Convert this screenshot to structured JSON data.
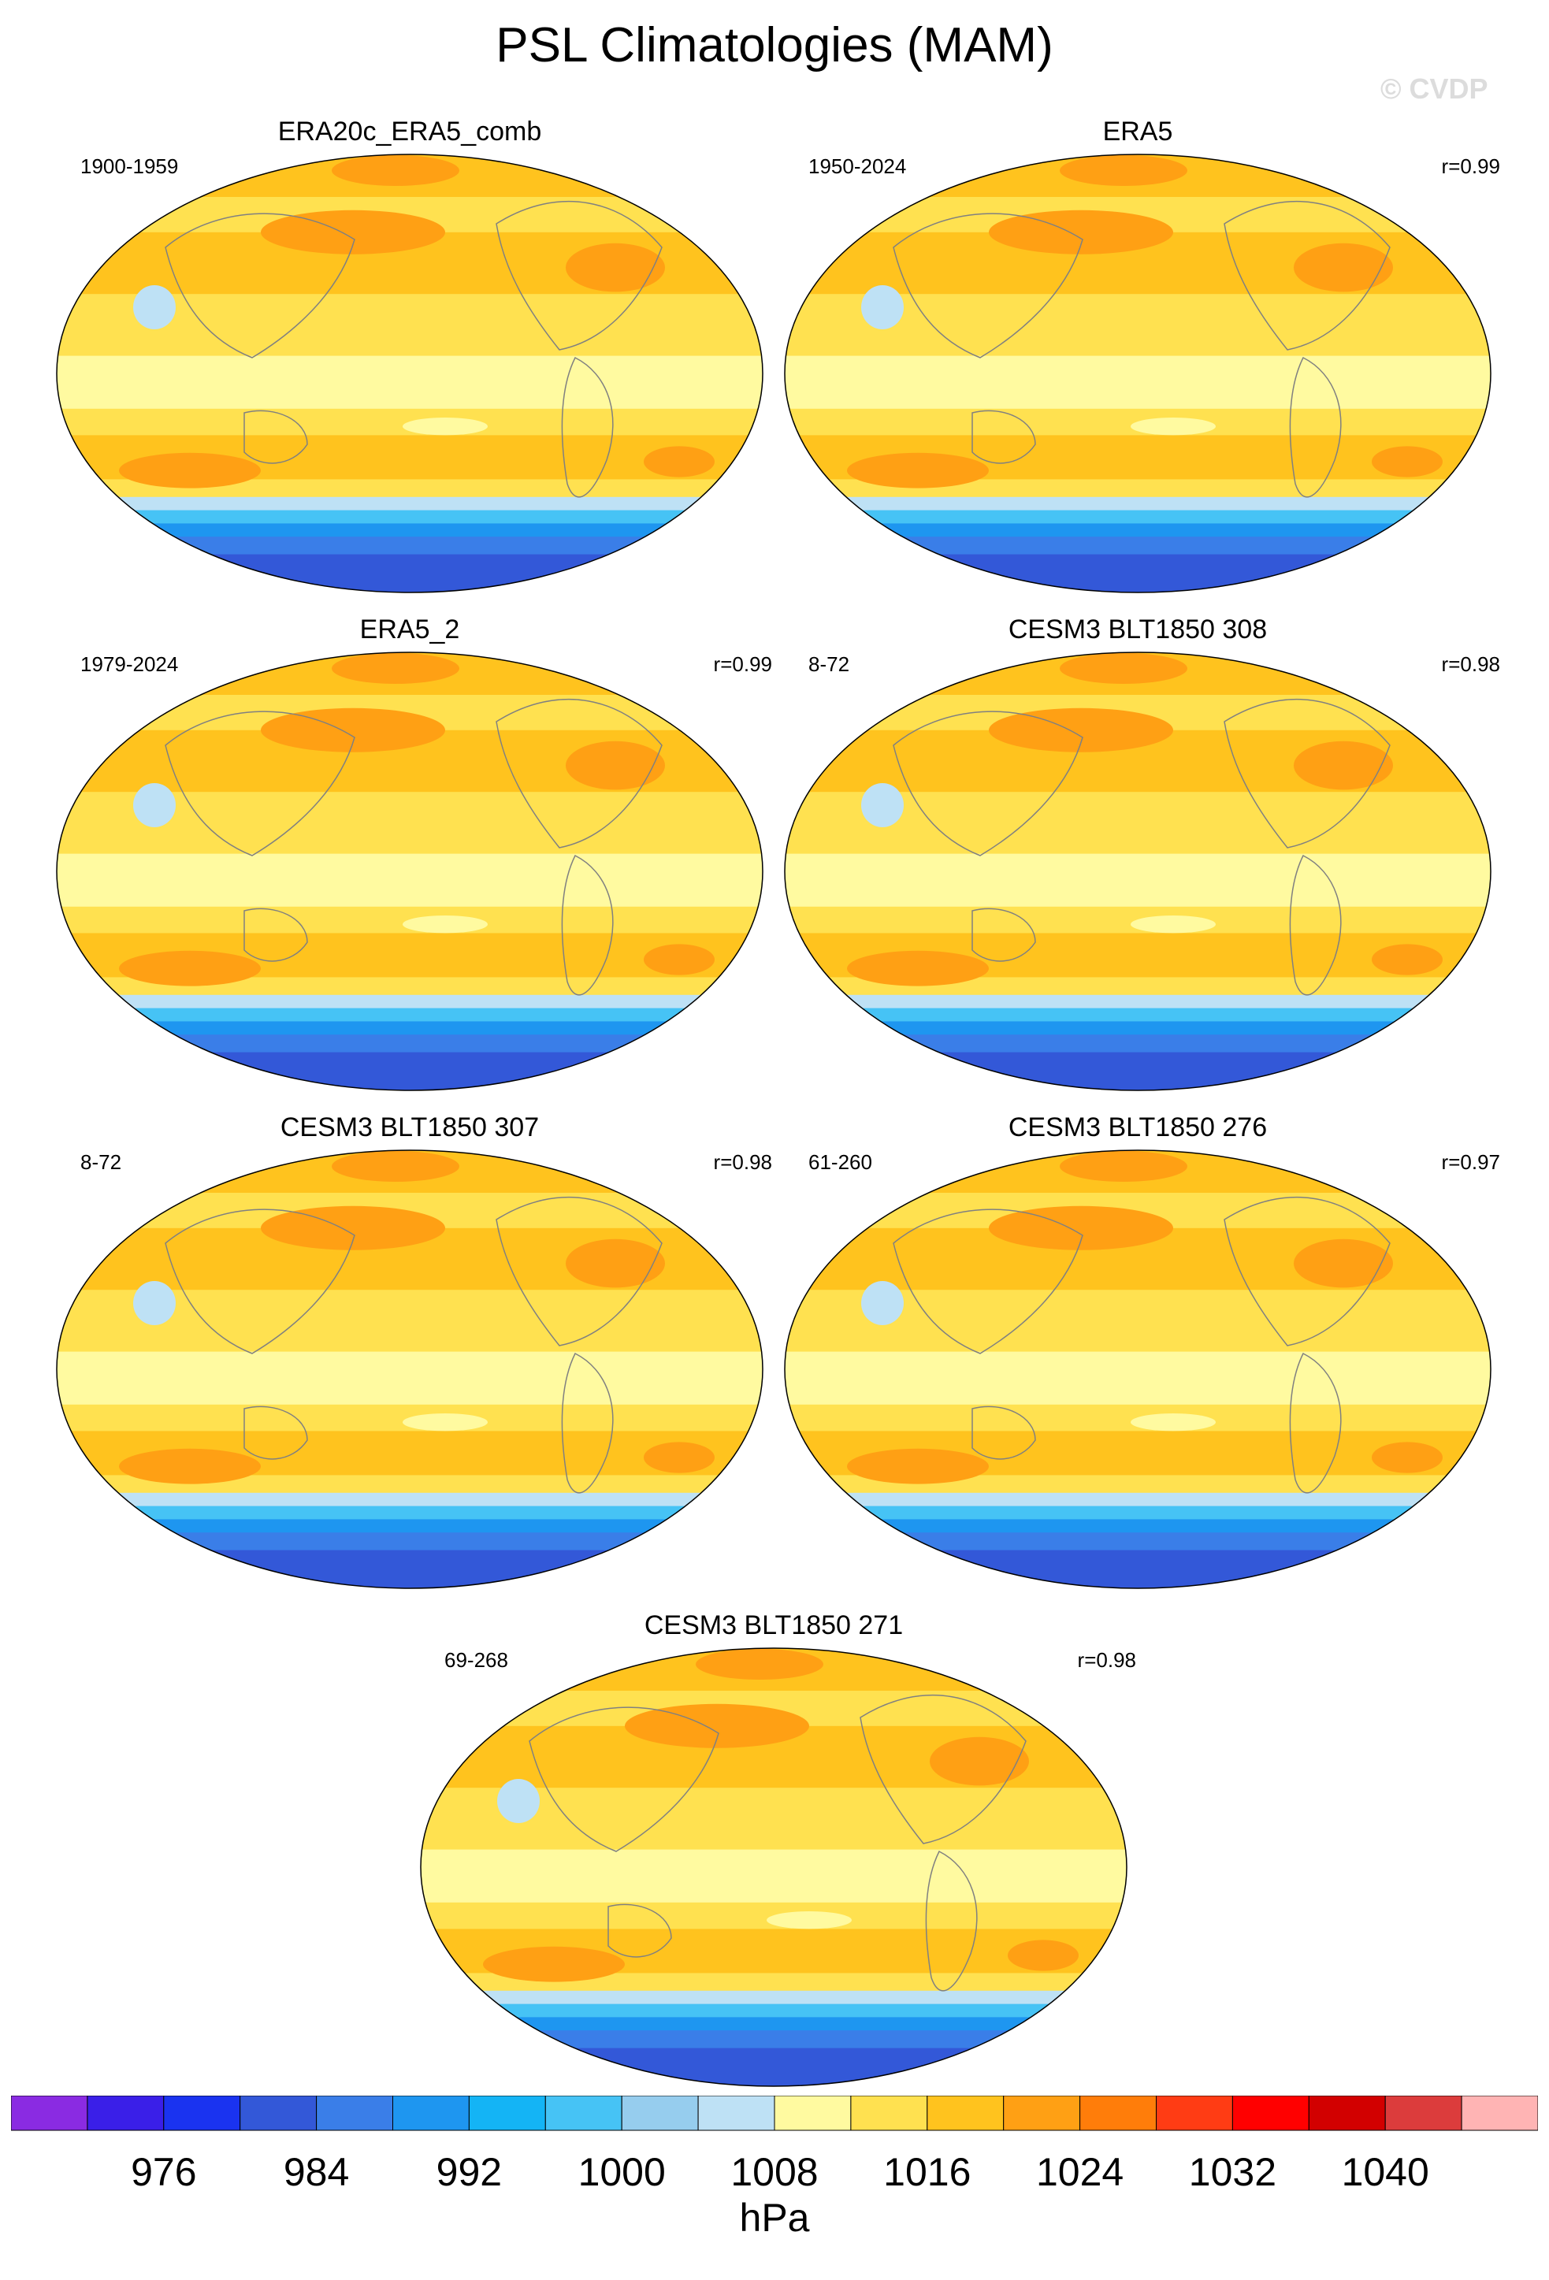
{
  "title": "PSL Climatologies (MAM)",
  "watermark": "© CVDP",
  "panels": [
    {
      "name": "ERA20c_ERA5_comb",
      "period": "1900-1959",
      "corr": ""
    },
    {
      "name": "ERA5",
      "period": "1950-2024",
      "corr": "r=0.99"
    },
    {
      "name": "ERA5_2",
      "period": "1979-2024",
      "corr": "r=0.99"
    },
    {
      "name": "CESM3 BLT1850 308",
      "period": "8-72",
      "corr": "r=0.98"
    },
    {
      "name": "CESM3 BLT1850 307",
      "period": "8-72",
      "corr": "r=0.98"
    },
    {
      "name": "CESM3 BLT1850 276",
      "period": "61-260",
      "corr": "r=0.97"
    },
    {
      "name": "CESM3 BLT1850 271",
      "period": "69-268",
      "corr": "r=0.98"
    }
  ],
  "colorbar": {
    "units": "hPa",
    "labels": [
      "976",
      "984",
      "992",
      "1000",
      "1008",
      "1016",
      "1024",
      "1032",
      "1040"
    ],
    "colors": [
      "#8a2be2",
      "#3a1fe8",
      "#1a33f0",
      "#3358d8",
      "#3a7ee8",
      "#1e96f0",
      "#14b4f5",
      "#46c3f5",
      "#96cdee",
      "#bee1f5",
      "#fffaa0",
      "#ffe150",
      "#ffc31e",
      "#ffa014",
      "#ff7d0a",
      "#ff3c14",
      "#ff0000",
      "#d20000",
      "#dc3c3c",
      "#ffb4b4"
    ]
  }
}
